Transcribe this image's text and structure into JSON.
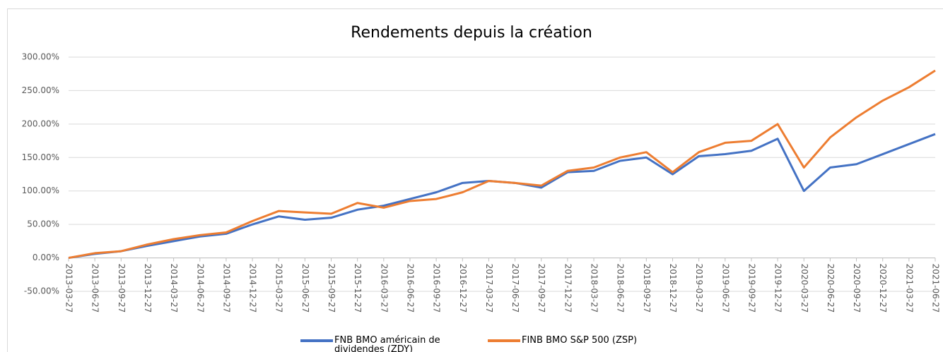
{
  "chart_data": {
    "type": "line",
    "title": "Rendements depuis la création",
    "x": [
      "2013-03-27",
      "2013-06-27",
      "2013-09-27",
      "2013-12-27",
      "2014-03-27",
      "2014-06-27",
      "2014-09-27",
      "2014-12-27",
      "2015-03-27",
      "2015-06-27",
      "2015-09-27",
      "2015-12-27",
      "2016-03-27",
      "2016-06-27",
      "2016-09-27",
      "2016-12-27",
      "2017-03-27",
      "2017-06-27",
      "2017-09-27",
      "2017-12-27",
      "2018-03-27",
      "2018-06-27",
      "2018-09-27",
      "2018-12-27",
      "2019-03-27",
      "2019-06-27",
      "2019-09-27",
      "2019-12-27",
      "2020-03-27",
      "2020-06-27",
      "2020-09-27",
      "2020-12-27",
      "2021-03-27",
      "2021-06-27"
    ],
    "series": [
      {
        "name": "FNB BMO américain de dividendes (ZDY)",
        "color": "#4472c4",
        "values": [
          0,
          6,
          10,
          18,
          25,
          32,
          36,
          50,
          62,
          57,
          60,
          72,
          78,
          88,
          98,
          112,
          115,
          112,
          105,
          128,
          130,
          145,
          150,
          125,
          152,
          155,
          160,
          178,
          100,
          135,
          140,
          155,
          170,
          185
        ]
      },
      {
        "name": "FINB BMO S&P 500 (ZSP)",
        "color": "#ed7d31",
        "values": [
          0,
          7,
          10,
          20,
          28,
          34,
          38,
          55,
          70,
          68,
          66,
          82,
          75,
          85,
          88,
          98,
          115,
          112,
          108,
          130,
          135,
          150,
          158,
          128,
          158,
          172,
          175,
          200,
          135,
          180,
          210,
          235,
          255,
          280
        ]
      }
    ],
    "ylim": [
      -50,
      300
    ],
    "yticks": [
      {
        "value": -50,
        "label": "-50.00%"
      },
      {
        "value": 0,
        "label": "0.00%"
      },
      {
        "value": 50,
        "label": "50.00%"
      },
      {
        "value": 100,
        "label": "100.00%"
      },
      {
        "value": 150,
        "label": "150.00%"
      },
      {
        "value": 200,
        "label": "200.00%"
      },
      {
        "value": 250,
        "label": "250.00%"
      },
      {
        "value": 300,
        "label": "300.00%"
      }
    ],
    "grid": true,
    "legend": "bottom"
  }
}
